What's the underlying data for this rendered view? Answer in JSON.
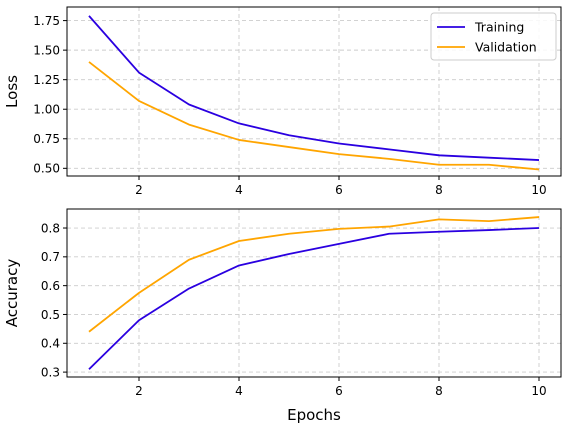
{
  "chart_data": [
    {
      "type": "line",
      "xlabel": "",
      "ylabel": "Loss",
      "x": [
        1,
        2,
        3,
        4,
        5,
        6,
        7,
        8,
        9,
        10
      ],
      "xticks": [
        2,
        4,
        6,
        8,
        10
      ],
      "yticks": [
        0.5,
        0.75,
        1.0,
        1.25,
        1.5,
        1.75
      ],
      "ytick_labels": [
        "0.50",
        "0.75",
        "1.00",
        "1.25",
        "1.50",
        "1.75"
      ],
      "xlim": [
        0.56,
        10.44
      ],
      "ylim": [
        0.435,
        1.865
      ],
      "grid": true,
      "legend": "top-right",
      "series": [
        {
          "name": "Training",
          "color": "#2a00e0",
          "values": [
            1.79,
            1.31,
            1.04,
            0.88,
            0.78,
            0.71,
            0.66,
            0.61,
            0.59,
            0.57
          ]
        },
        {
          "name": "Validation",
          "color": "#ffa500",
          "values": [
            1.4,
            1.07,
            0.87,
            0.74,
            0.68,
            0.62,
            0.58,
            0.53,
            0.53,
            0.49
          ]
        }
      ]
    },
    {
      "type": "line",
      "xlabel": "Epochs",
      "ylabel": "Accuracy",
      "x": [
        1,
        2,
        3,
        4,
        5,
        6,
        7,
        8,
        9,
        10
      ],
      "xticks": [
        2,
        4,
        6,
        8,
        10
      ],
      "yticks": [
        0.3,
        0.4,
        0.5,
        0.6,
        0.7,
        0.8
      ],
      "ytick_labels": [
        "0.3",
        "0.4",
        "0.5",
        "0.6",
        "0.7",
        "0.8"
      ],
      "xlim": [
        0.56,
        10.44
      ],
      "ylim": [
        0.283,
        0.866
      ],
      "grid": true,
      "series": [
        {
          "name": "Training",
          "color": "#2a00e0",
          "values": [
            0.31,
            0.48,
            0.59,
            0.67,
            0.71,
            0.745,
            0.78,
            0.787,
            0.793,
            0.8
          ]
        },
        {
          "name": "Validation",
          "color": "#ffa500",
          "values": [
            0.44,
            0.575,
            0.69,
            0.755,
            0.78,
            0.797,
            0.805,
            0.83,
            0.824,
            0.838
          ]
        }
      ]
    }
  ]
}
